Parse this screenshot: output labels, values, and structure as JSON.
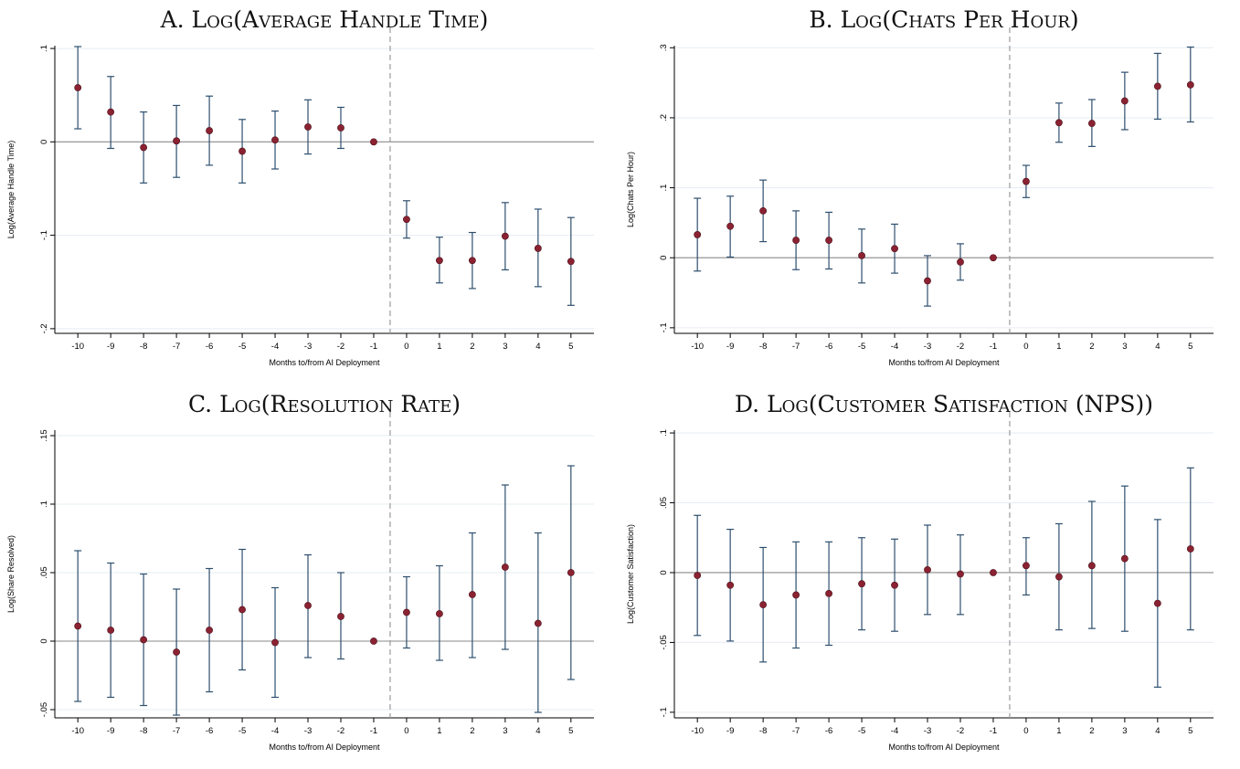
{
  "colors": {
    "point": "#8b2232",
    "whisker": "#2e4f6e",
    "grid": "#e6ecf2",
    "zeroline": "#8a8a8a",
    "vline": "#9a9a9a"
  },
  "chart_data": [
    {
      "type": "scatter",
      "title": "A. Log(Average Handle Time)",
      "xlabel": "Months to/from AI Deployment",
      "ylabel": "Log(Average Handle Time)",
      "x_ticks": [
        "-10",
        "-9",
        "-8",
        "-7",
        "-6",
        "-5",
        "-4",
        "-3",
        "-2",
        "-1",
        "0",
        "1",
        "2",
        "3",
        "4",
        "5"
      ],
      "y_ticks": [
        {
          "v": 0.1,
          "label": ".1"
        },
        {
          "v": 0,
          "label": "0"
        },
        {
          "v": -0.1,
          "label": "-.1"
        },
        {
          "v": -0.2,
          "label": "-.2"
        }
      ],
      "ylim": [
        -0.205,
        0.103
      ],
      "deployment_line": -0.5,
      "points": [
        {
          "x": -10,
          "y": 0.058,
          "lo": 0.014,
          "hi": 0.102
        },
        {
          "x": -9,
          "y": 0.032,
          "lo": -0.007,
          "hi": 0.07
        },
        {
          "x": -8,
          "y": -0.006,
          "lo": -0.044,
          "hi": 0.032
        },
        {
          "x": -7,
          "y": 0.001,
          "lo": -0.038,
          "hi": 0.039
        },
        {
          "x": -6,
          "y": 0.012,
          "lo": -0.025,
          "hi": 0.049
        },
        {
          "x": -5,
          "y": -0.01,
          "lo": -0.044,
          "hi": 0.024
        },
        {
          "x": -4,
          "y": 0.002,
          "lo": -0.029,
          "hi": 0.033
        },
        {
          "x": -3,
          "y": 0.016,
          "lo": -0.013,
          "hi": 0.045
        },
        {
          "x": -2,
          "y": 0.015,
          "lo": -0.007,
          "hi": 0.037
        },
        {
          "x": -1,
          "y": 0.0,
          "lo": 0.0,
          "hi": 0.0
        },
        {
          "x": 0,
          "y": -0.083,
          "lo": -0.103,
          "hi": -0.063
        },
        {
          "x": 1,
          "y": -0.127,
          "lo": -0.151,
          "hi": -0.102
        },
        {
          "x": 2,
          "y": -0.127,
          "lo": -0.157,
          "hi": -0.097
        },
        {
          "x": 3,
          "y": -0.101,
          "lo": -0.137,
          "hi": -0.065
        },
        {
          "x": 4,
          "y": -0.114,
          "lo": -0.155,
          "hi": -0.072
        },
        {
          "x": 5,
          "y": -0.128,
          "lo": -0.175,
          "hi": -0.081
        }
      ]
    },
    {
      "type": "scatter",
      "title": "B. Log(Chats Per Hour)",
      "xlabel": "Months to/from AI Deployment",
      "ylabel": "Log(Chats Per Hour)",
      "x_ticks": [
        "-10",
        "-9",
        "-8",
        "-7",
        "-6",
        "-5",
        "-4",
        "-3",
        "-2",
        "-1",
        "0",
        "1",
        "2",
        "3",
        "4",
        "5"
      ],
      "y_ticks": [
        {
          "v": 0.3,
          "label": ".3"
        },
        {
          "v": 0.2,
          "label": ".2"
        },
        {
          "v": 0.1,
          "label": ".1"
        },
        {
          "v": 0,
          "label": "0"
        },
        {
          "v": -0.1,
          "label": "-.1"
        }
      ],
      "ylim": [
        -0.108,
        0.303
      ],
      "deployment_line": -0.5,
      "points": [
        {
          "x": -10,
          "y": 0.033,
          "lo": -0.019,
          "hi": 0.085
        },
        {
          "x": -9,
          "y": 0.045,
          "lo": 0.001,
          "hi": 0.088
        },
        {
          "x": -8,
          "y": 0.067,
          "lo": 0.023,
          "hi": 0.111
        },
        {
          "x": -7,
          "y": 0.025,
          "lo": -0.017,
          "hi": 0.067
        },
        {
          "x": -6,
          "y": 0.025,
          "lo": -0.016,
          "hi": 0.065
        },
        {
          "x": -5,
          "y": 0.003,
          "lo": -0.036,
          "hi": 0.041
        },
        {
          "x": -4,
          "y": 0.013,
          "lo": -0.022,
          "hi": 0.048
        },
        {
          "x": -3,
          "y": -0.033,
          "lo": -0.069,
          "hi": 0.003
        },
        {
          "x": -2,
          "y": -0.006,
          "lo": -0.032,
          "hi": 0.02
        },
        {
          "x": -1,
          "y": 0.0,
          "lo": 0.0,
          "hi": 0.0
        },
        {
          "x": 0,
          "y": 0.109,
          "lo": 0.086,
          "hi": 0.132
        },
        {
          "x": 1,
          "y": 0.193,
          "lo": 0.165,
          "hi": 0.221
        },
        {
          "x": 2,
          "y": 0.192,
          "lo": 0.159,
          "hi": 0.226
        },
        {
          "x": 3,
          "y": 0.224,
          "lo": 0.183,
          "hi": 0.265
        },
        {
          "x": 4,
          "y": 0.245,
          "lo": 0.198,
          "hi": 0.292
        },
        {
          "x": 5,
          "y": 0.247,
          "lo": 0.194,
          "hi": 0.301
        }
      ]
    },
    {
      "type": "scatter",
      "title": "C. Log(Resolution Rate)",
      "xlabel": "Months to/from AI Deployment",
      "ylabel": "Log(Share Resolved)",
      "x_ticks": [
        "-10",
        "-9",
        "-8",
        "-7",
        "-6",
        "-5",
        "-4",
        "-3",
        "-2",
        "-1",
        "0",
        "1",
        "2",
        "3",
        "4",
        "5"
      ],
      "y_ticks": [
        {
          "v": 0.15,
          "label": ".15"
        },
        {
          "v": 0.1,
          "label": ".1"
        },
        {
          "v": 0.05,
          "label": ".05"
        },
        {
          "v": 0,
          "label": "0"
        },
        {
          "v": -0.05,
          "label": "-.05"
        }
      ],
      "ylim": [
        -0.056,
        0.154
      ],
      "deployment_line": -0.5,
      "points": [
        {
          "x": -10,
          "y": 0.011,
          "lo": -0.044,
          "hi": 0.066
        },
        {
          "x": -9,
          "y": 0.008,
          "lo": -0.041,
          "hi": 0.057
        },
        {
          "x": -8,
          "y": 0.001,
          "lo": -0.047,
          "hi": 0.049
        },
        {
          "x": -7,
          "y": -0.008,
          "lo": -0.054,
          "hi": 0.038
        },
        {
          "x": -6,
          "y": 0.008,
          "lo": -0.037,
          "hi": 0.053
        },
        {
          "x": -5,
          "y": 0.023,
          "lo": -0.021,
          "hi": 0.067
        },
        {
          "x": -4,
          "y": -0.001,
          "lo": -0.041,
          "hi": 0.039
        },
        {
          "x": -3,
          "y": 0.026,
          "lo": -0.012,
          "hi": 0.063
        },
        {
          "x": -2,
          "y": 0.018,
          "lo": -0.013,
          "hi": 0.05
        },
        {
          "x": -1,
          "y": 0.0,
          "lo": 0.0,
          "hi": 0.0
        },
        {
          "x": 0,
          "y": 0.021,
          "lo": -0.005,
          "hi": 0.047
        },
        {
          "x": 1,
          "y": 0.02,
          "lo": -0.014,
          "hi": 0.055
        },
        {
          "x": 2,
          "y": 0.034,
          "lo": -0.012,
          "hi": 0.079
        },
        {
          "x": 3,
          "y": 0.054,
          "lo": -0.006,
          "hi": 0.114
        },
        {
          "x": 4,
          "y": 0.013,
          "lo": -0.052,
          "hi": 0.079
        },
        {
          "x": 5,
          "y": 0.05,
          "lo": -0.028,
          "hi": 0.128
        }
      ]
    },
    {
      "type": "scatter",
      "title": "D. Log(Customer Satisfaction (NPS))",
      "xlabel": "Months to/from AI Deployment",
      "ylabel": "Log(Customer Satisfaction)",
      "x_ticks": [
        "-10",
        "-9",
        "-8",
        "-7",
        "-6",
        "-5",
        "-4",
        "-3",
        "-2",
        "-1",
        "0",
        "1",
        "2",
        "3",
        "4",
        "5"
      ],
      "y_ticks": [
        {
          "v": 0.1,
          "label": ".1"
        },
        {
          "v": 0.05,
          "label": ".05"
        },
        {
          "v": 0,
          "label": "0"
        },
        {
          "v": -0.05,
          "label": "-.05"
        },
        {
          "v": -0.1,
          "label": "-.1"
        }
      ],
      "ylim": [
        -0.104,
        0.102
      ],
      "deployment_line": -0.5,
      "points": [
        {
          "x": -10,
          "y": -0.002,
          "lo": -0.045,
          "hi": 0.041
        },
        {
          "x": -9,
          "y": -0.009,
          "lo": -0.049,
          "hi": 0.031
        },
        {
          "x": -8,
          "y": -0.023,
          "lo": -0.064,
          "hi": 0.018
        },
        {
          "x": -7,
          "y": -0.016,
          "lo": -0.054,
          "hi": 0.022
        },
        {
          "x": -6,
          "y": -0.015,
          "lo": -0.052,
          "hi": 0.022
        },
        {
          "x": -5,
          "y": -0.008,
          "lo": -0.041,
          "hi": 0.025
        },
        {
          "x": -4,
          "y": -0.009,
          "lo": -0.042,
          "hi": 0.024
        },
        {
          "x": -3,
          "y": 0.002,
          "lo": -0.03,
          "hi": 0.034
        },
        {
          "x": -2,
          "y": -0.001,
          "lo": -0.03,
          "hi": 0.027
        },
        {
          "x": -1,
          "y": 0.0,
          "lo": 0.0,
          "hi": 0.0
        },
        {
          "x": 0,
          "y": 0.005,
          "lo": -0.016,
          "hi": 0.025
        },
        {
          "x": 1,
          "y": -0.003,
          "lo": -0.041,
          "hi": 0.035
        },
        {
          "x": 2,
          "y": 0.005,
          "lo": -0.04,
          "hi": 0.051
        },
        {
          "x": 3,
          "y": 0.01,
          "lo": -0.042,
          "hi": 0.062
        },
        {
          "x": 4,
          "y": -0.022,
          "lo": -0.082,
          "hi": 0.038
        },
        {
          "x": 5,
          "y": 0.017,
          "lo": -0.041,
          "hi": 0.075
        }
      ]
    }
  ]
}
